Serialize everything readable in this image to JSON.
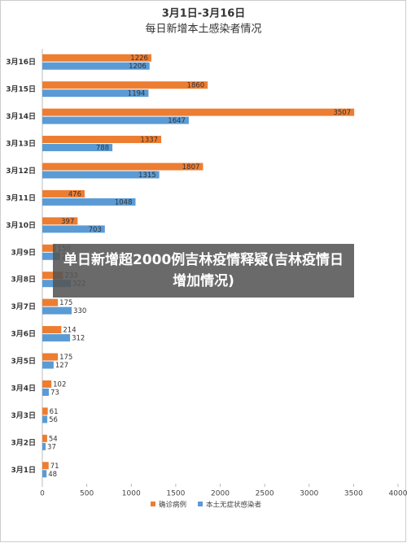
{
  "chart_data": {
    "type": "bar",
    "orientation": "horizontal",
    "title": "3月1日-3月16日",
    "subtitle": "每日新增本土感染者情况",
    "categories": [
      "3月16日",
      "3月15日",
      "3月14日",
      "3月13日",
      "3月12日",
      "3月11日",
      "3月10日",
      "3月9日",
      "3月8日",
      "3月7日",
      "3月6日",
      "3月5日",
      "3月4日",
      "3月3日",
      "3月2日",
      "3月1日"
    ],
    "series": [
      {
        "name": "确诊病例",
        "color": "#ed7d31",
        "values": [
          1226,
          1860,
          3507,
          1337,
          1807,
          476,
          397,
          150,
          233,
          175,
          214,
          175,
          102,
          61,
          54,
          71
        ]
      },
      {
        "name": "本土无症状感染者",
        "color": "#5b9bd5",
        "values": [
          1206,
          1194,
          1647,
          788,
          1315,
          1048,
          703,
          200,
          322,
          330,
          312,
          127,
          73,
          56,
          37,
          48
        ]
      }
    ],
    "xlim": [
      0,
      4000
    ],
    "xticks": [
      0,
      500,
      1000,
      1500,
      2000,
      2500,
      3000,
      3500,
      4000
    ],
    "legend": "bottom",
    "overlay": "单日新增超2000例吉林疫情释疑(吉林疫情日增加情况)"
  }
}
